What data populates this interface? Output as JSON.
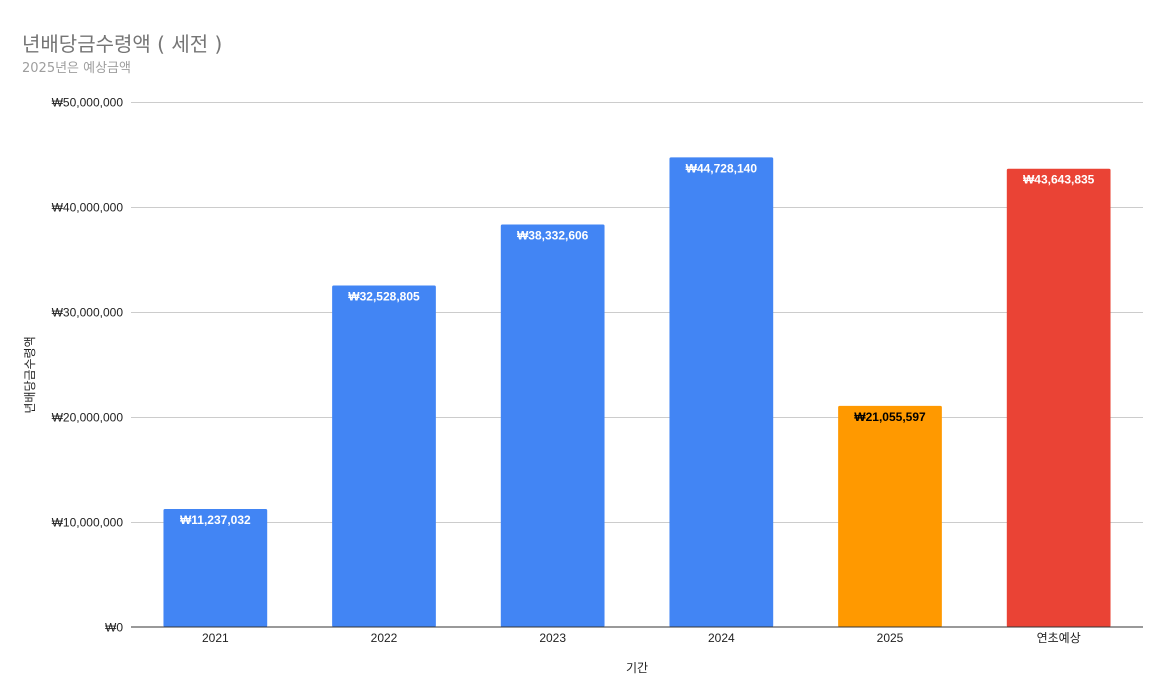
{
  "chart_data": {
    "type": "bar",
    "title": "년배당금수령액 ( 세전 )",
    "subtitle": "2025년은 예상금액",
    "xlabel": "기간",
    "ylabel": "년배당금수령액",
    "ylim": [
      0,
      50000000
    ],
    "yticks": [
      0,
      10000000,
      20000000,
      30000000,
      40000000,
      50000000
    ],
    "ytick_labels": [
      "₩0",
      "₩10,000,000",
      "₩20,000,000",
      "₩30,000,000",
      "₩40,000,000",
      "₩50,000,000"
    ],
    "categories": [
      "2021",
      "2022",
      "2023",
      "2024",
      "2025",
      "연초예상"
    ],
    "values": [
      11237032,
      32528805,
      38332606,
      44728140,
      21055597,
      43643835
    ],
    "data_labels": [
      "₩11,237,032",
      "₩32,528,805",
      "₩38,332,606",
      "₩44,728,140",
      "₩21,055,597",
      "₩43,643,835"
    ],
    "bar_colors": [
      "#4285f4",
      "#4285f4",
      "#4285f4",
      "#4285f4",
      "#ff9900",
      "#ea4335"
    ],
    "label_colors": [
      "#ffffff",
      "#ffffff",
      "#ffffff",
      "#ffffff",
      "#000000",
      "#ffffff"
    ],
    "grid": true,
    "legend": "none"
  }
}
